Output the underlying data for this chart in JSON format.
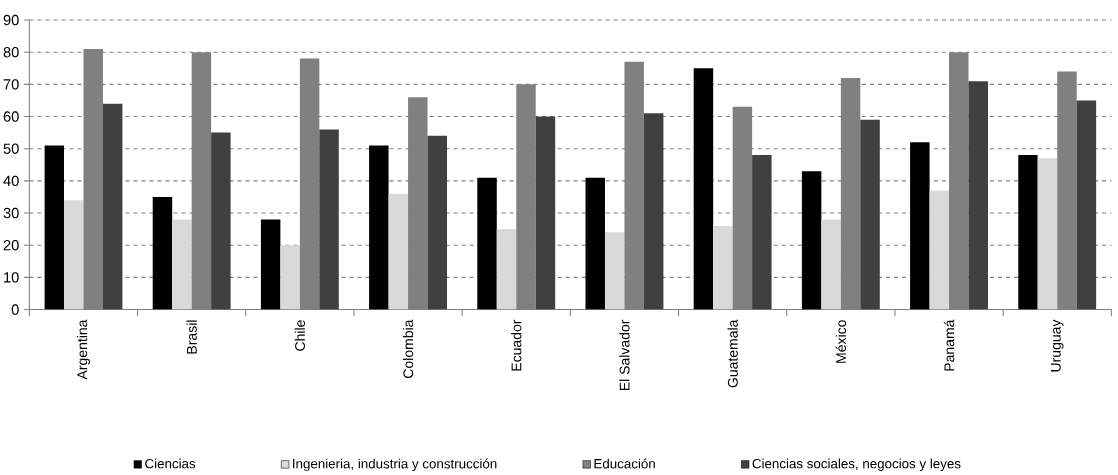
{
  "chart_data": {
    "type": "bar",
    "categories": [
      "Argentina",
      "Brasil",
      "Chile",
      "Colombia",
      "Ecuador",
      "El Salvador",
      "Guatemala",
      "México",
      "Panamá",
      "Uruguay"
    ],
    "series": [
      {
        "name": "Ciencias",
        "color": "#000000",
        "values": [
          51,
          35,
          28,
          51,
          41,
          41,
          75,
          43,
          52,
          48
        ]
      },
      {
        "name": "Ingenieria, industria y construcción",
        "color": "#d9d9d9",
        "values": [
          34,
          28,
          20,
          36,
          25,
          24,
          26,
          28,
          37,
          47
        ]
      },
      {
        "name": "Educación",
        "color": "#808080",
        "values": [
          81,
          80,
          78,
          66,
          70,
          77,
          63,
          72,
          80,
          74
        ]
      },
      {
        "name": "Ciencias sociales, negocios y leyes",
        "color": "#404040",
        "values": [
          64,
          55,
          56,
          54,
          60,
          61,
          48,
          59,
          71,
          65
        ]
      }
    ],
    "ylim": [
      0,
      90
    ],
    "yticks": [
      0,
      10,
      20,
      30,
      40,
      50,
      60,
      70,
      80,
      90
    ],
    "grid": "y",
    "legend": "bottom"
  }
}
